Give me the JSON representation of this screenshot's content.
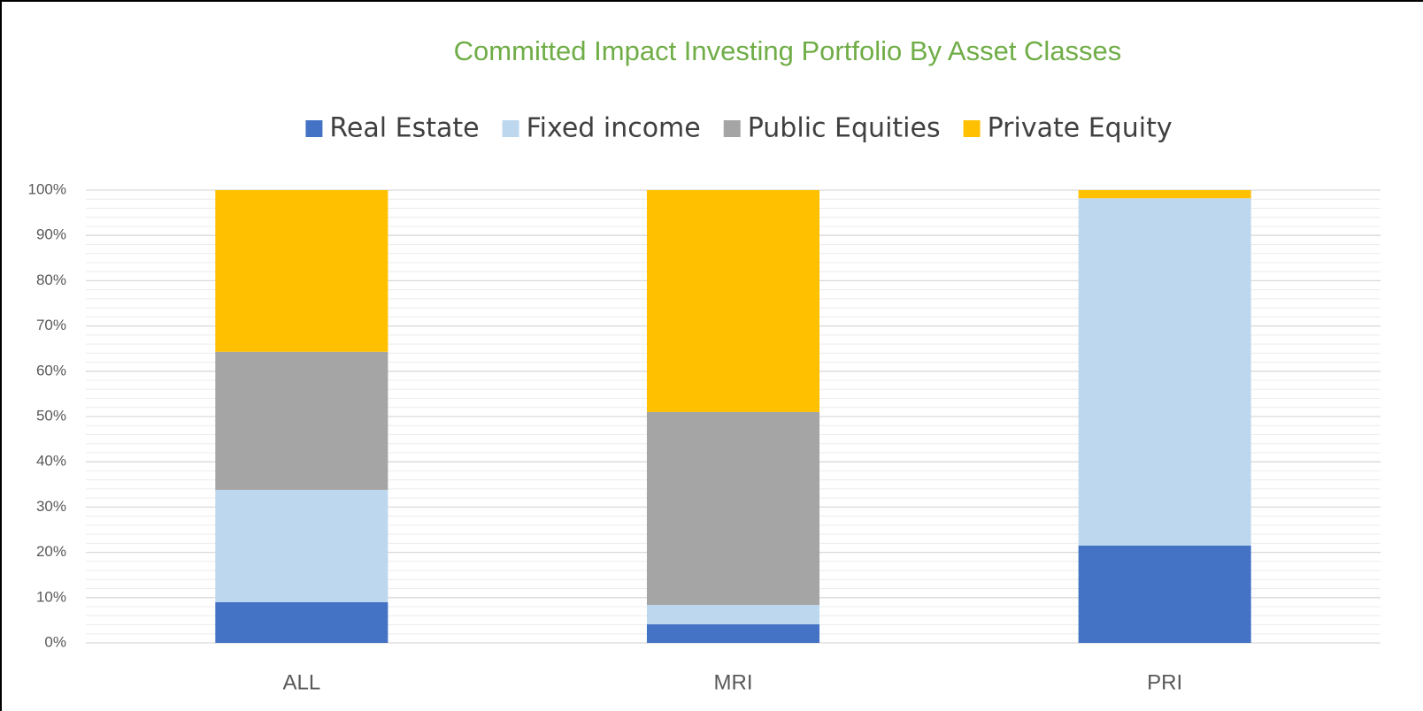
{
  "chart_data": {
    "type": "stacked_bar",
    "title": "Committed Impact Investing Portfolio By Asset Classes",
    "categories": [
      "ALL",
      "MRI",
      "PRI"
    ],
    "series": [
      {
        "name": "Real Estate",
        "color": "#4472c4",
        "values": [
          9.0,
          4.1,
          21.5
        ]
      },
      {
        "name": "Fixed income",
        "color": "#bdd7ee",
        "values": [
          24.8,
          4.3,
          76.7
        ]
      },
      {
        "name": "Public Equities",
        "color": "#a5a5a5",
        "values": [
          30.5,
          42.6,
          0
        ]
      },
      {
        "name": "Private Equity",
        "color": "#ffc000",
        "values": [
          35.7,
          49.0,
          1.8
        ]
      }
    ],
    "ylim": [
      0,
      100
    ],
    "yticks": [
      {
        "value": 0,
        "label": "0%"
      },
      {
        "value": 10,
        "label": "10%"
      },
      {
        "value": 20,
        "label": "20%"
      },
      {
        "value": 30,
        "label": "30%"
      },
      {
        "value": 40,
        "label": "40%"
      },
      {
        "value": 50,
        "label": "50%"
      },
      {
        "value": 60,
        "label": "60%"
      },
      {
        "value": 70,
        "label": "70%"
      },
      {
        "value": 80,
        "label": "80%"
      },
      {
        "value": 90,
        "label": "90%"
      },
      {
        "value": 100,
        "label": "100%"
      }
    ],
    "grid": true,
    "minor_grid": true,
    "legend": "top",
    "title_color": "#70ad47"
  }
}
